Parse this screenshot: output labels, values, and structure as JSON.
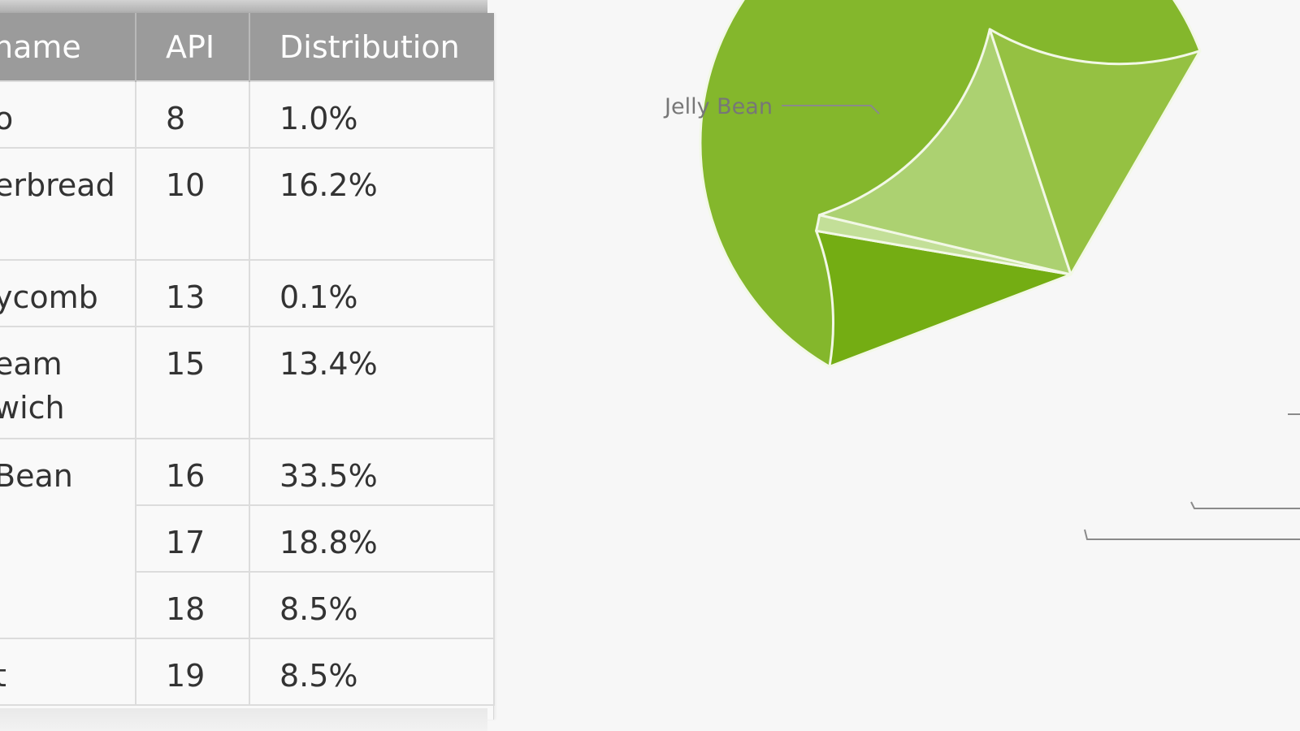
{
  "table": {
    "headers": [
      "name",
      "API",
      "Distribution"
    ],
    "rows": [
      {
        "name": [
          "o"
        ],
        "api": "8",
        "distribution": "1.0%"
      },
      {
        "name": [
          "erbread"
        ],
        "api": "10",
        "distribution": "16.2%"
      },
      {
        "name": [
          "ycomb"
        ],
        "api": "13",
        "distribution": "0.1%"
      },
      {
        "name": [
          "eam",
          "wich"
        ],
        "api": "15",
        "distribution": "13.4%"
      },
      {
        "name": [
          "Bean"
        ],
        "api": "16",
        "distribution": "33.5%"
      },
      {
        "name": [
          ""
        ],
        "api": "17",
        "distribution": "18.8%"
      },
      {
        "name": [
          ""
        ],
        "api": "18",
        "distribution": "8.5%"
      },
      {
        "name": [
          "t"
        ],
        "api": "19",
        "distribution": "8.5%"
      }
    ]
  },
  "chart_data": {
    "type": "pie",
    "slices": [
      {
        "label": "Jelly Bean",
        "value": 60.8,
        "color": "#84b72c"
      },
      {
        "label": "",
        "value": 8.5,
        "color": "#74ad13"
      },
      {
        "label": "",
        "value": 1.0,
        "color": "#c3df98"
      },
      {
        "label": "",
        "value": 16.2,
        "color": "#acd171"
      },
      {
        "label": "",
        "value": 13.4,
        "color": "#95c142"
      }
    ],
    "start_angle_deg": -60
  }
}
